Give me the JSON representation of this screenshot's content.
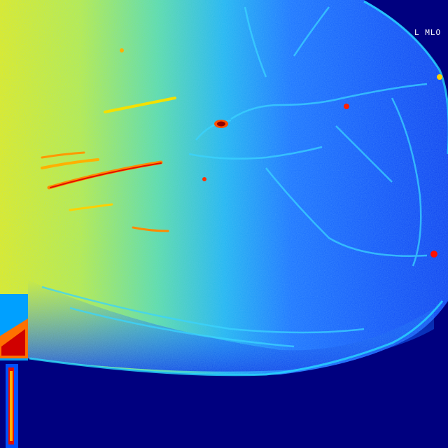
{
  "image": {
    "kind": "pseudocolor mammogram",
    "colormap": "jet",
    "colors": {
      "background": "#00007f",
      "low": "#0a3cff",
      "mid": "#00c8ff",
      "high": "#f0f000",
      "hot": "#e00000"
    }
  },
  "marker": {
    "text": "L MLO"
  }
}
